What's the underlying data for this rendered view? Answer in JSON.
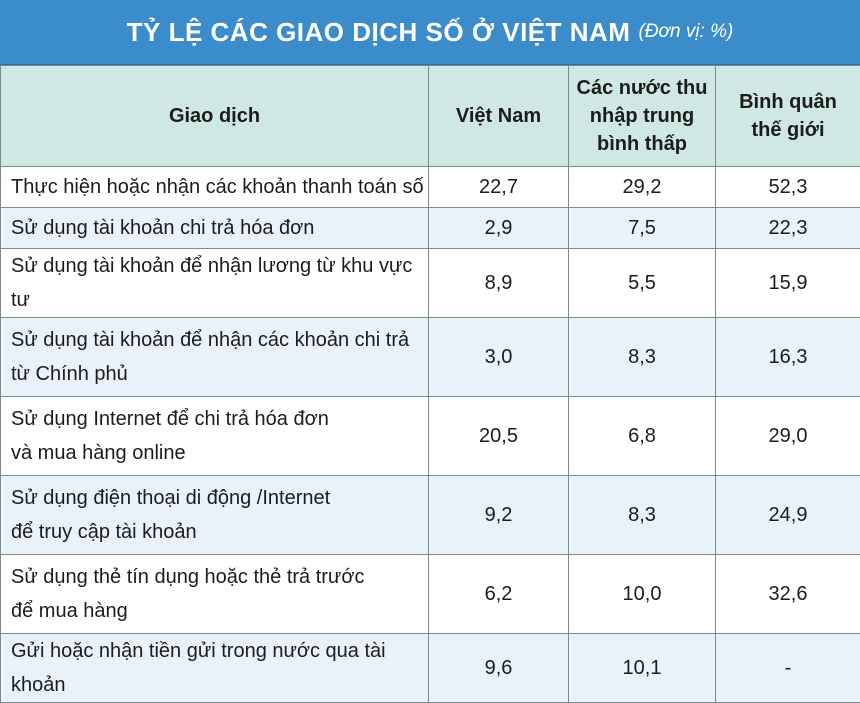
{
  "title": {
    "main": "TỶ LỆ CÁC GIAO DỊCH SỐ Ở VIỆT NAM",
    "unit": "(Đơn vị: %)"
  },
  "table": {
    "headers": [
      "Giao dịch",
      "Việt Nam",
      "Các nước thu\nnhập trung\nbình thấp",
      "Bình quân\nthế giới"
    ],
    "rows": [
      {
        "label": "Thực hiện hoặc nhận các khoản thanh toán số",
        "vn": "22,7",
        "lmi": "29,2",
        "world": "52,3"
      },
      {
        "label": "Sử dụng tài khoản chi trả hóa đơn",
        "vn": "2,9",
        "lmi": "7,5",
        "world": "22,3"
      },
      {
        "label": "Sử dụng tài khoản để nhận lương từ khu vực tư",
        "vn": "8,9",
        "lmi": "5,5",
        "world": "15,9"
      },
      {
        "label": "Sử dụng tài khoản để nhận các khoản chi trả\ntừ Chính phủ",
        "vn": "3,0",
        "lmi": "8,3",
        "world": "16,3"
      },
      {
        "label": "Sử dụng Internet để chi trả hóa đơn\nvà mua hàng online",
        "vn": "20,5",
        "lmi": "6,8",
        "world": "29,0"
      },
      {
        "label": "Sử dụng điện thoại di động /Internet\nđể truy cập tài khoản",
        "vn": "9,2",
        "lmi": "8,3",
        "world": "24,9"
      },
      {
        "label": "Sử dụng thẻ tín dụng hoặc thẻ trả trước\nđể mua hàng",
        "vn": "6,2",
        "lmi": "10,0",
        "world": "32,6"
      },
      {
        "label": "Gửi hoặc nhận tiền gửi trong nước qua tài khoản",
        "vn": "9,6",
        "lmi": "10,1",
        "world": "-"
      }
    ]
  }
}
